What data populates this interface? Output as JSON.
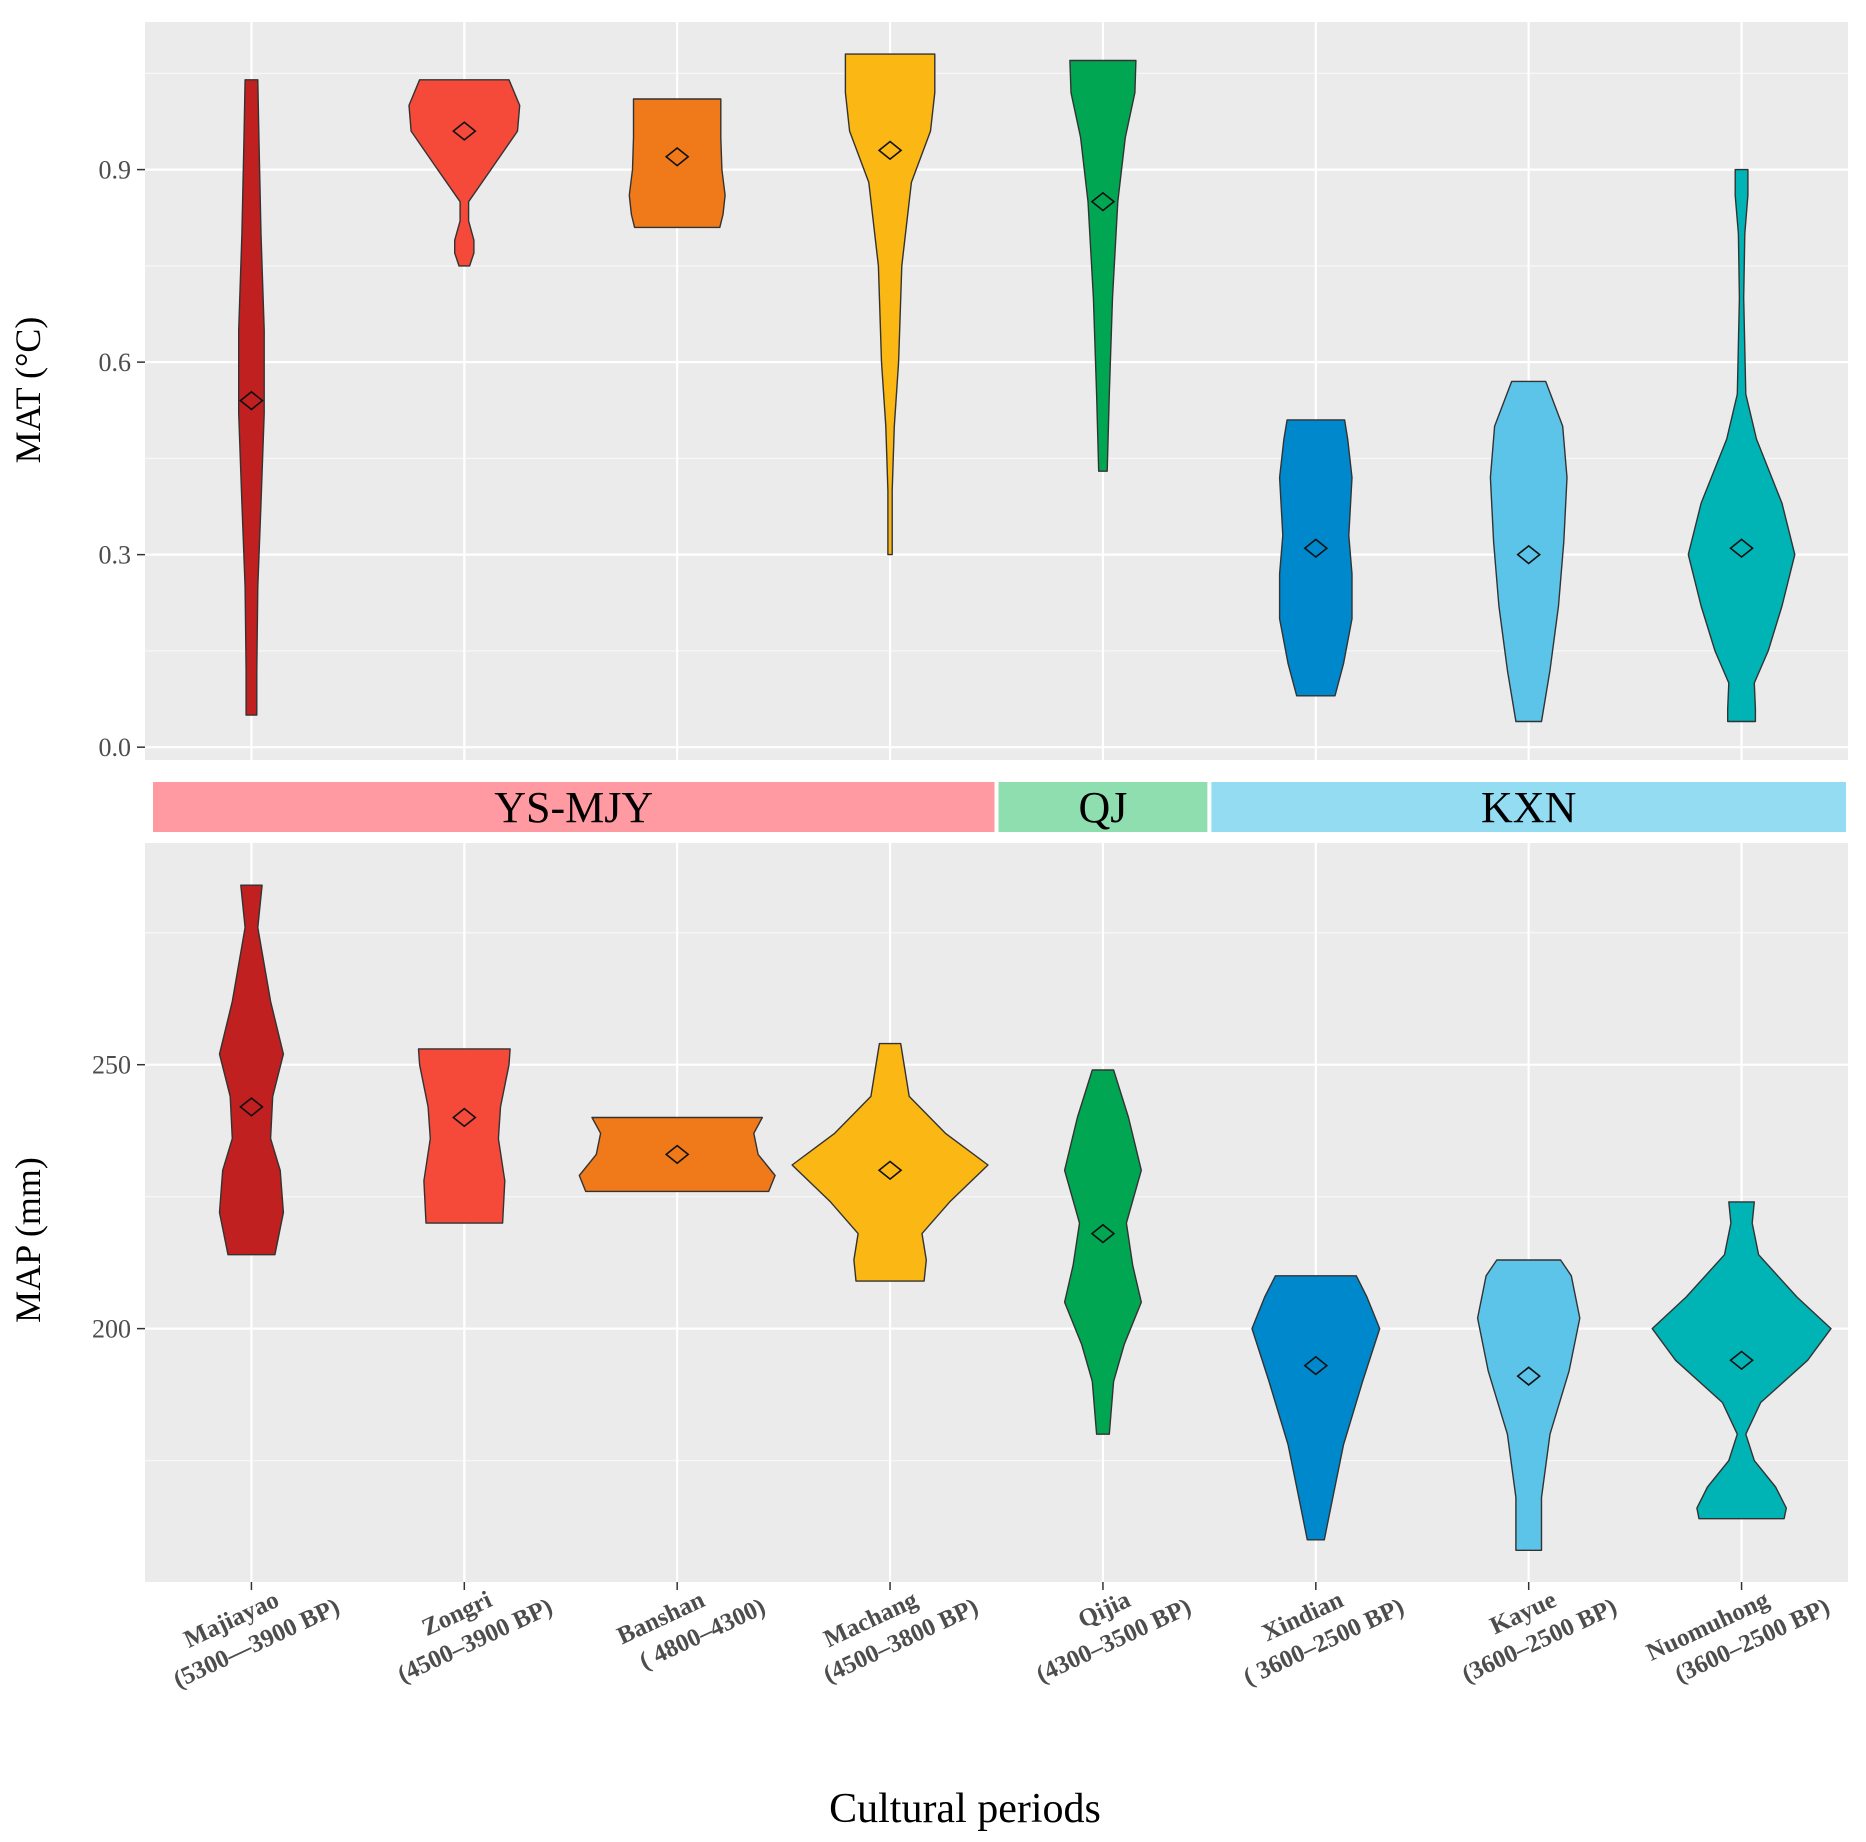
{
  "chart_data": {
    "type": "violin",
    "xlabel": "Cultural periods",
    "categories": [
      {
        "line1": "Majiayao",
        "line2": "(5300—3900 BP)"
      },
      {
        "line1": "Zongri",
        "line2": "(4500–3900 BP)"
      },
      {
        "line1": "Banshan",
        "line2": "( 4800–4300)"
      },
      {
        "line1": "Machang",
        "line2": "(4500–3800 BP)"
      },
      {
        "line1": "Qijia",
        "line2": "(4300–3500 BP)"
      },
      {
        "line1": "Xindian",
        "line2": "( 3600–2500 BP)"
      },
      {
        "line1": "Kayue",
        "line2": "(3600–2500 BP)"
      },
      {
        "line1": "Nuomuhong",
        "line2": "(3600–2500 BP)"
      }
    ],
    "colors": [
      "#c0201f",
      "#f5493a",
      "#f07a1a",
      "#fbb714",
      "#00a651",
      "#0088cc",
      "#5bc4e8",
      "#00b3b5"
    ],
    "groups": [
      {
        "label": "YS-MJY",
        "from": 0,
        "to": 3,
        "color": "#ff9aa2"
      },
      {
        "label": "QJ",
        "from": 4,
        "to": 4,
        "color": "#8fdeb0"
      },
      {
        "label": "KXN",
        "from": 5,
        "to": 7,
        "color": "#94dcf2"
      }
    ],
    "panels": [
      {
        "ylabel": "MAT (°C)",
        "ylim": [
          -0.02,
          1.13
        ],
        "ticks": [
          0.0,
          0.3,
          0.6,
          0.9
        ],
        "tick_labels": [
          "0.0",
          "0.3",
          "0.6",
          "0.9"
        ],
        "minor_ticks": [
          0.15,
          0.45,
          0.75,
          1.05
        ],
        "series": [
          {
            "means": 0.54,
            "profile": [
              [
                0.05,
                0.05
              ],
              [
                0.12,
                0.05
              ],
              [
                0.25,
                0.06
              ],
              [
                0.38,
                0.09
              ],
              [
                0.52,
                0.12
              ],
              [
                0.65,
                0.12
              ],
              [
                0.8,
                0.09
              ],
              [
                0.95,
                0.07
              ],
              [
                1.04,
                0.06
              ]
            ]
          },
          {
            "means": 0.96,
            "profile": [
              [
                0.75,
                0.05
              ],
              [
                0.77,
                0.09
              ],
              [
                0.79,
                0.09
              ],
              [
                0.82,
                0.04
              ],
              [
                0.85,
                0.04
              ],
              [
                0.9,
                0.25
              ],
              [
                0.96,
                0.5
              ],
              [
                1.0,
                0.52
              ],
              [
                1.04,
                0.42
              ]
            ]
          },
          {
            "means": 0.92,
            "profile": [
              [
                0.81,
                0.4
              ],
              [
                0.83,
                0.43
              ],
              [
                0.86,
                0.45
              ],
              [
                0.9,
                0.42
              ],
              [
                0.95,
                0.41
              ],
              [
                1.01,
                0.41
              ]
            ]
          },
          {
            "means": 0.93,
            "profile": [
              [
                0.3,
                0.02
              ],
              [
                0.4,
                0.02
              ],
              [
                0.5,
                0.04
              ],
              [
                0.6,
                0.08
              ],
              [
                0.75,
                0.11
              ],
              [
                0.88,
                0.2
              ],
              [
                0.96,
                0.38
              ],
              [
                1.02,
                0.42
              ],
              [
                1.08,
                0.42
              ]
            ]
          },
          {
            "means": 0.85,
            "profile": [
              [
                0.43,
                0.04
              ],
              [
                0.55,
                0.06
              ],
              [
                0.7,
                0.09
              ],
              [
                0.85,
                0.14
              ],
              [
                0.95,
                0.21
              ],
              [
                1.02,
                0.3
              ],
              [
                1.07,
                0.31
              ]
            ]
          },
          {
            "means": 0.31,
            "profile": [
              [
                0.08,
                0.18
              ],
              [
                0.13,
                0.26
              ],
              [
                0.2,
                0.34
              ],
              [
                0.27,
                0.34
              ],
              [
                0.33,
                0.31
              ],
              [
                0.42,
                0.34
              ],
              [
                0.48,
                0.3
              ],
              [
                0.51,
                0.27
              ]
            ]
          },
          {
            "means": 0.3,
            "profile": [
              [
                0.04,
                0.12
              ],
              [
                0.12,
                0.2
              ],
              [
                0.22,
                0.28
              ],
              [
                0.32,
                0.33
              ],
              [
                0.42,
                0.36
              ],
              [
                0.5,
                0.32
              ],
              [
                0.57,
                0.16
              ]
            ]
          },
          {
            "means": 0.31,
            "profile": [
              [
                0.04,
                0.13
              ],
              [
                0.06,
                0.13
              ],
              [
                0.1,
                0.12
              ],
              [
                0.15,
                0.25
              ],
              [
                0.22,
                0.38
              ],
              [
                0.3,
                0.5
              ],
              [
                0.38,
                0.38
              ],
              [
                0.48,
                0.14
              ],
              [
                0.55,
                0.04
              ],
              [
                0.7,
                0.02
              ],
              [
                0.8,
                0.03
              ],
              [
                0.86,
                0.06
              ],
              [
                0.9,
                0.06
              ]
            ]
          }
        ]
      },
      {
        "ylabel": "MAP (mm)",
        "ylim": [
          152,
          292
        ],
        "ticks": [
          200,
          250
        ],
        "tick_labels": [
          "200",
          "250"
        ],
        "minor_ticks": [
          175,
          225,
          275
        ],
        "series": [
          {
            "means": 242,
            "profile": [
              [
                214,
                0.22
              ],
              [
                222,
                0.3
              ],
              [
                230,
                0.27
              ],
              [
                236,
                0.18
              ],
              [
                244,
                0.2
              ],
              [
                252,
                0.3
              ],
              [
                262,
                0.18
              ],
              [
                276,
                0.06
              ],
              [
                284,
                0.1
              ]
            ]
          },
          {
            "means": 240,
            "profile": [
              [
                220,
                0.36
              ],
              [
                228,
                0.38
              ],
              [
                236,
                0.32
              ],
              [
                242,
                0.34
              ],
              [
                250,
                0.42
              ],
              [
                253,
                0.43
              ]
            ]
          },
          {
            "means": 233,
            "profile": [
              [
                226,
                0.86
              ],
              [
                229,
                0.92
              ],
              [
                233,
                0.76
              ],
              [
                237,
                0.72
              ],
              [
                240,
                0.8
              ]
            ]
          },
          {
            "means": 230,
            "profile": [
              [
                209,
                0.32
              ],
              [
                213,
                0.34
              ],
              [
                218,
                0.3
              ],
              [
                224,
                0.56
              ],
              [
                231,
                0.92
              ],
              [
                237,
                0.52
              ],
              [
                244,
                0.18
              ],
              [
                254,
                0.1
              ]
            ]
          },
          {
            "means": 218,
            "profile": [
              [
                180,
                0.06
              ],
              [
                190,
                0.1
              ],
              [
                197,
                0.2
              ],
              [
                205,
                0.36
              ],
              [
                212,
                0.28
              ],
              [
                220,
                0.22
              ],
              [
                230,
                0.36
              ],
              [
                240,
                0.24
              ],
              [
                249,
                0.1
              ]
            ]
          },
          {
            "means": 193,
            "profile": [
              [
                160,
                0.08
              ],
              [
                168,
                0.16
              ],
              [
                178,
                0.26
              ],
              [
                190,
                0.44
              ],
              [
                200,
                0.6
              ],
              [
                206,
                0.48
              ],
              [
                210,
                0.38
              ]
            ]
          },
          {
            "means": 191,
            "profile": [
              [
                158,
                0.12
              ],
              [
                168,
                0.12
              ],
              [
                180,
                0.2
              ],
              [
                192,
                0.38
              ],
              [
                202,
                0.48
              ],
              [
                210,
                0.4
              ],
              [
                213,
                0.3
              ]
            ]
          },
          {
            "means": 194,
            "profile": [
              [
                164,
                0.4
              ],
              [
                166,
                0.42
              ],
              [
                170,
                0.32
              ],
              [
                175,
                0.12
              ],
              [
                180,
                0.04
              ],
              [
                186,
                0.18
              ],
              [
                194,
                0.62
              ],
              [
                200,
                0.84
              ],
              [
                206,
                0.52
              ],
              [
                214,
                0.16
              ],
              [
                220,
                0.1
              ],
              [
                224,
                0.12
              ]
            ]
          }
        ]
      }
    ]
  }
}
